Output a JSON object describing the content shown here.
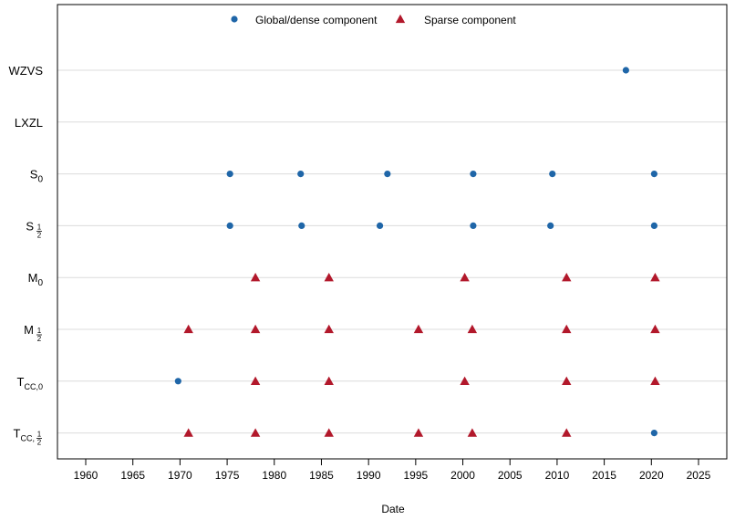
{
  "chart_data": {
    "type": "scatter",
    "xlabel": "Date",
    "xlim": [
      1957,
      2028
    ],
    "x_ticks": [
      1960,
      1965,
      1970,
      1975,
      1980,
      1985,
      1990,
      1995,
      2000,
      2005,
      2010,
      2015,
      2020,
      2025
    ],
    "y_categories": [
      {
        "base": "WZVS",
        "sub": ""
      },
      {
        "base": "LXZL",
        "sub": ""
      },
      {
        "base": "S",
        "sub": "0"
      },
      {
        "base": "S",
        "sub": "1/2"
      },
      {
        "base": "M",
        "sub": "0"
      },
      {
        "base": "M",
        "sub": "1/2"
      },
      {
        "base": "T",
        "sub": "CC,0"
      },
      {
        "base": "T",
        "sub": "CC,1/2"
      }
    ],
    "grid": "horizontal",
    "legend_position": "top",
    "series": [
      {
        "name": "Global/dense component",
        "marker": "circle",
        "color": "#1f66a8",
        "points": [
          {
            "x": 2017.3,
            "y": 0
          },
          {
            "x": 1975.3,
            "y": 2
          },
          {
            "x": 1982.8,
            "y": 2
          },
          {
            "x": 1992.0,
            "y": 2
          },
          {
            "x": 2001.1,
            "y": 2
          },
          {
            "x": 2009.5,
            "y": 2
          },
          {
            "x": 2020.3,
            "y": 2
          },
          {
            "x": 1975.3,
            "y": 3
          },
          {
            "x": 1982.9,
            "y": 3
          },
          {
            "x": 1991.2,
            "y": 3
          },
          {
            "x": 2001.1,
            "y": 3
          },
          {
            "x": 2009.3,
            "y": 3
          },
          {
            "x": 2020.3,
            "y": 3
          },
          {
            "x": 1969.8,
            "y": 6
          },
          {
            "x": 2020.3,
            "y": 7
          }
        ]
      },
      {
        "name": "Sparse component",
        "marker": "triangle",
        "color": "#b2182b",
        "points": [
          {
            "x": 1978.0,
            "y": 4
          },
          {
            "x": 1985.8,
            "y": 4
          },
          {
            "x": 2000.2,
            "y": 4
          },
          {
            "x": 2011.0,
            "y": 4
          },
          {
            "x": 2020.4,
            "y": 4
          },
          {
            "x": 1970.9,
            "y": 5
          },
          {
            "x": 1978.0,
            "y": 5
          },
          {
            "x": 1985.8,
            "y": 5
          },
          {
            "x": 1995.3,
            "y": 5
          },
          {
            "x": 2001.0,
            "y": 5
          },
          {
            "x": 2011.0,
            "y": 5
          },
          {
            "x": 2020.4,
            "y": 5
          },
          {
            "x": 1978.0,
            "y": 6
          },
          {
            "x": 1985.8,
            "y": 6
          },
          {
            "x": 2000.2,
            "y": 6
          },
          {
            "x": 2011.0,
            "y": 6
          },
          {
            "x": 2020.4,
            "y": 6
          },
          {
            "x": 1970.9,
            "y": 7
          },
          {
            "x": 1978.0,
            "y": 7
          },
          {
            "x": 1985.8,
            "y": 7
          },
          {
            "x": 1995.3,
            "y": 7
          },
          {
            "x": 2001.0,
            "y": 7
          },
          {
            "x": 2011.0,
            "y": 7
          }
        ]
      }
    ]
  }
}
